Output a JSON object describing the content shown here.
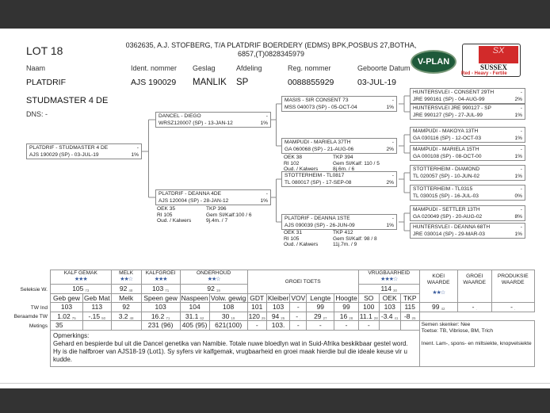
{
  "header": {
    "lot": "LOT 18",
    "owner_line1": "0362635, A.J. STOFBERG, T/A PLATDRIF BOERDERY (EDMS) BPK,POSBUS 27,BOTHA,",
    "owner_line2": "6857,(T)0828345979"
  },
  "logos": {
    "vplan": "V-PLAN",
    "sussex": "SUSSEX",
    "sussex_badge": "SX",
    "sussex_tagline": "Red - Heavy - Fertile"
  },
  "fields": {
    "labels": [
      "Naam",
      "Ident. nommer",
      "Geslag",
      "Afdeling",
      "Reg. nommer",
      "Geboorte Datum"
    ],
    "values": [
      "PLATDRIF",
      "AJS 190029",
      "MANLIK",
      "SP",
      "0088855929",
      "03-JUL-19"
    ],
    "name2": "STUDMASTER 4 DE",
    "dns": "DNS: -"
  },
  "pedigree": [
    {
      "name": "PLATDRIF -  STUDMASTER 4 DE",
      "mark": "-",
      "id": "AJS 190029 (SP) - 03-JUL-19",
      "pct": "1%"
    },
    {
      "name": "DANCEL -  DIEGO",
      "mark": "-",
      "id": "WRSZ120007 (SP) - 13-JAN-12",
      "pct": "1%"
    },
    {
      "name": "PLATDRIF -  DEANNA 4DE",
      "mark": "-",
      "id": "AJS 120004 (SP) - 28-JAN-12",
      "pct": "1%"
    },
    {
      "name": "MASIS -  SIR CONSENT 73",
      "mark": "-",
      "id": "MSS 040073 (SP) - 05-OCT-04",
      "pct": "1%"
    },
    {
      "name": "MAMPUDI -  MARIELA 37TH",
      "mark": "-",
      "id": "GA  060068 (SP) - 21-AUG-06",
      "pct": "2%"
    },
    {
      "name": "STOTTERHEIM -  TL0817",
      "mark": "-",
      "id": "TL  080017 (SP) - 17-SEP-08",
      "pct": "2%"
    },
    {
      "name": "PLATDRIF -  DEANNA 1STE",
      "mark": "-",
      "id": "AJS 090039 (SP) - 26-JUN-09",
      "pct": "1%"
    },
    {
      "name": "HUNTERSVLEI -  CONSENT 29TH",
      "mark": "-",
      "id": "JRE 990161 (SP) - 04-AUG-99",
      "pct": "2%"
    },
    {
      "name": "HUNTERSVLEI JRE 990127 - SP",
      "mark": "-",
      "id": "JRE 990127 (SP) - 27-JUL-99",
      "pct": "1%"
    },
    {
      "name": "MAMPUDI -  MAKOYA 13TH",
      "mark": "-",
      "id": "GA  030116 (SP) - 12-OCT-03",
      "pct": "1%"
    },
    {
      "name": "MAMPUDI -  MARIELA 15TH",
      "mark": "-",
      "id": "GA  000108 (SP) - 08-OCT-00",
      "pct": "1%"
    },
    {
      "name": "STOTTERHEIM -  DIAMOND",
      "mark": "-",
      "id": "TL  020057 (SP) - 10-JUN-02",
      "pct": "1%"
    },
    {
      "name": "STOTTERHEIM -  TL0315",
      "mark": "-",
      "id": "TL  030015 (SP) - 16-JUL-03",
      "pct": "0%"
    },
    {
      "name": "MAMPUDI -  SETTLER 13TH",
      "mark": "-",
      "id": "GA  020049 (SP) - 20-AUG-02",
      "pct": "8%"
    },
    {
      "name": "HUNTERSVLEI -  DEANNA 68TH",
      "mark": "-",
      "id": "JRE 030014 (SP) - 29-MAR-03",
      "pct": "1%"
    }
  ],
  "cow_info": [
    {
      "oek": "OEK    35",
      "tkp": "TKP      396",
      "ri": "RI   105",
      "gem": "Gem SI/Kalf:100 / 6",
      "oud": "Oud. / Kalwers",
      "oudv": "9j.4m. / 7"
    },
    {
      "oek": "OEK      38",
      "tkp": "TKP      394",
      "ri": "RI       102",
      "gem": "Gem SI/Kalf:  110 / 5",
      "oud": "Oud. / Kalwers",
      "oudv": "8j.6m. / 6"
    },
    {
      "oek": "OEK      31",
      "tkp": "TKP      412",
      "ri": "RI          105",
      "gem": "Gem SI/Kalf:   98 / 8",
      "oud": "Oud. / Kalwers",
      "oudv": "11j.7m. / 9"
    }
  ],
  "table": {
    "row_labels": [
      "Seleksie W.",
      "TW Ind",
      "Beraamde TW",
      "Metings"
    ],
    "groups": [
      {
        "label": "KALF GEMAK",
        "stars": 3
      },
      {
        "label": "MELK",
        "stars": 2
      },
      {
        "label": "KALFGROEI",
        "stars": 3
      },
      {
        "label": "ONDERHOUD",
        "stars": 2
      },
      {
        "label": "GROEI TOETS"
      },
      {
        "label": "VRUGBAARHEID",
        "stars": 3
      },
      {
        "label": "KOEI WAARDE",
        "stars": 2
      },
      {
        "label": "GROEI WAARDE"
      },
      {
        "label": "PRODUKSIE WAARDE"
      }
    ],
    "seleksie": [
      {
        "v": "105",
        "s": "73"
      },
      {
        "v": "92",
        "s": "48"
      },
      {
        "v": "103",
        "s": "71"
      },
      {
        "v": "92",
        "s": "19"
      },
      {
        "v": "114",
        "s": "30"
      }
    ],
    "columns": [
      "Geb gew",
      "Geb Mat",
      "Melk",
      "Speen gew",
      "Naspeen",
      "Volw. gewig",
      "GDT",
      "Kleiber",
      "VOV",
      "Lengte",
      "Hoogte",
      "SO",
      "OEK",
      "TKP"
    ],
    "tw_ind": [
      "103",
      "113",
      "92",
      "103",
      "104",
      "108",
      "101",
      "103",
      "-",
      "99",
      "99",
      "100",
      "103",
      "115"
    ],
    "tw_ind_right": [
      {
        "v": "99",
        "s": "42"
      },
      {
        "v": "-",
        "s": "."
      },
      {
        "v": "-",
        "s": "."
      }
    ],
    "beraamde": [
      {
        "v": "1.02",
        "s": "75"
      },
      {
        "v": "-.15",
        "s": "50"
      },
      {
        "v": "3.2",
        "s": "48"
      },
      {
        "v": "16.2",
        "s": "71"
      },
      {
        "v": "31.1",
        "s": "62"
      },
      {
        "v": "30",
        "s": "19"
      },
      {
        "v": "120",
        "s": "25"
      },
      {
        "v": "94",
        "s": "25"
      },
      {
        "v": "-",
        "s": "."
      },
      {
        "v": "29",
        "s": "27"
      },
      {
        "v": "16",
        "s": "28"
      },
      {
        "v": "11.1",
        "s": "28"
      },
      {
        "v": "-3.4",
        "s": "41"
      },
      {
        "v": "-8",
        "s": "25"
      }
    ],
    "metings": [
      "35",
      "",
      "",
      "231  (96)",
      "405 (95)",
      "621(100)",
      "-",
      "103.",
      "-",
      "-",
      "-",
      "-",
      "",
      ""
    ],
    "semen": "Semen skenker: Nee",
    "toetse": "Toetse: TB, Vibriose, BM, Trich",
    "inent": "Inent. Lam-, spons- en miltsiekte, knopvelsiekte",
    "opmerkings_label": "Opmerkings:",
    "opmerkings": "Gehard en bespierde bul uit die Dancel genetika van Namibie. Totale nuwe bloedlyn wat in Suid-Afrika beskikbaar gestel word. Hy is die halfbroer van AJS18-19 (Lot1). Sy syfers vir kalfgemak, vrugbaarheid en groei maak hierdie bul die ideale keuse vir u kudde."
  },
  "colors": {
    "stars": "#3b5d9e",
    "vplan_green": "#1f5a3a",
    "sussex_red": "#d22a2a",
    "background": "#333333"
  }
}
